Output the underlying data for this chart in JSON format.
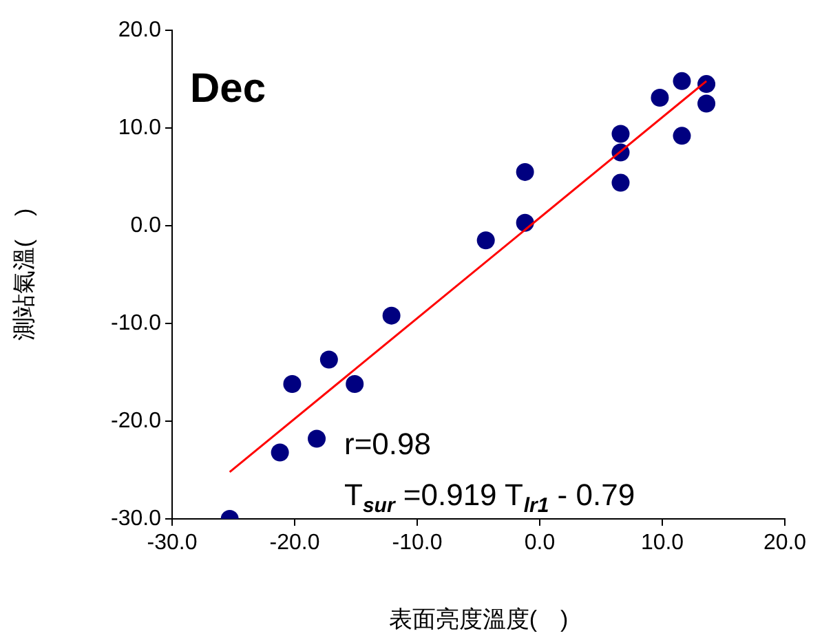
{
  "chart_data": {
    "type": "scatter",
    "title": "Dec",
    "xlabel": "表面亮度溫度(　)",
    "ylabel": "測站氣溫(　)",
    "xlim": [
      -30,
      20
    ],
    "ylim": [
      -30,
      20
    ],
    "xticks": [
      {
        "value": -30,
        "label": "-30.0"
      },
      {
        "value": -20,
        "label": "-20.0"
      },
      {
        "value": -10,
        "label": "-10.0"
      },
      {
        "value": 0,
        "label": "0.0"
      },
      {
        "value": 10,
        "label": "10.0"
      },
      {
        "value": 20,
        "label": "20.0"
      }
    ],
    "yticks": [
      {
        "value": -30,
        "label": "-30.0"
      },
      {
        "value": -20,
        "label": "-20.0"
      },
      {
        "value": -10,
        "label": "-10.0"
      },
      {
        "value": 0,
        "label": "0.0"
      },
      {
        "value": 10,
        "label": "10.0"
      },
      {
        "value": 20,
        "label": "20.0"
      }
    ],
    "grid": false,
    "legend": false,
    "series": [
      {
        "marker": "circle",
        "color": "#000080",
        "x": [
          -25.3,
          -21.2,
          -18.2,
          -20.2,
          -17.2,
          -15.1,
          -12.1,
          -4.4,
          -1.2,
          -1.2,
          6.6,
          6.6,
          6.6,
          9.8,
          11.6,
          11.6,
          13.6,
          13.6
        ],
        "values": [
          -30.0,
          -23.2,
          -21.8,
          -16.2,
          -13.7,
          -16.2,
          -9.2,
          -1.5,
          5.5,
          0.3,
          9.4,
          7.5,
          4.4,
          13.1,
          14.8,
          9.2,
          14.5,
          12.5
        ]
      },
      {
        "type": "line",
        "marker": "none",
        "color": "#ff0000",
        "x": [
          -25.3,
          13.6
        ],
        "values": [
          -25.2,
          14.8
        ]
      }
    ],
    "annotations": [
      "r=0.98",
      "T$_{sur}$ =0.919 T$_{lr1}$ - 0.79"
    ]
  }
}
